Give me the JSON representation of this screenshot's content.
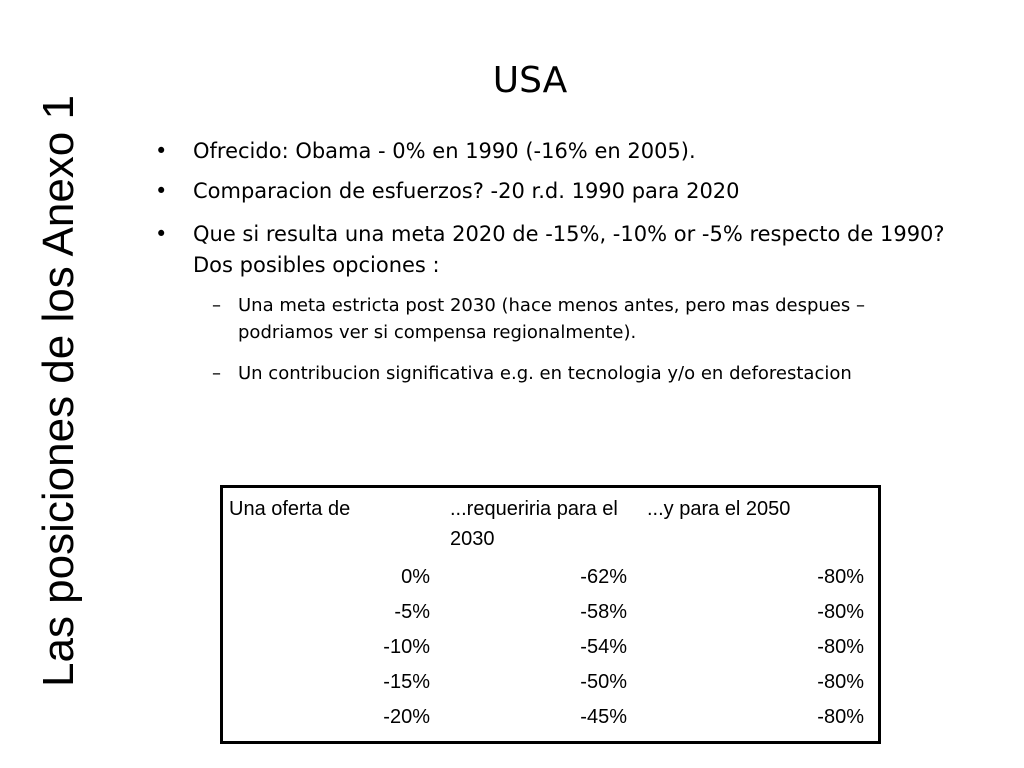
{
  "side_title": "Las posiciones de los Anexo 1",
  "title": "USA",
  "bullets": [
    {
      "text": "Ofrecido: Obama - 0% en 1990 (-16% en 2005)."
    },
    {
      "text": "Comparacion de esfuerzos? -20 r.d. 1990 para  2020"
    },
    {
      "text": "Que si resulta una meta 2020 de -15%, -10% or -5% respecto de 1990? Dos posibles opciones :"
    }
  ],
  "sub_bullets": [
    {
      "text": "Una meta  estricta post 2030 (hace menos antes, pero mas despues – podriamos ver si compensa regionalmente)."
    },
    {
      "text": "Un contribucion significativa e.g. en tecnologia y/o en deforestacion"
    }
  ],
  "table": {
    "headers": [
      "Una oferta de",
      "...requeriria para el 2030",
      "...y para el 2050"
    ],
    "rows": [
      [
        "0%",
        "-62%",
        "-80%"
      ],
      [
        "-5%",
        "-58%",
        "-80%"
      ],
      [
        "-10%",
        "-54%",
        "-80%"
      ],
      [
        "-15%",
        "-50%",
        "-80%"
      ],
      [
        "-20%",
        "-45%",
        "-80%"
      ]
    ]
  }
}
